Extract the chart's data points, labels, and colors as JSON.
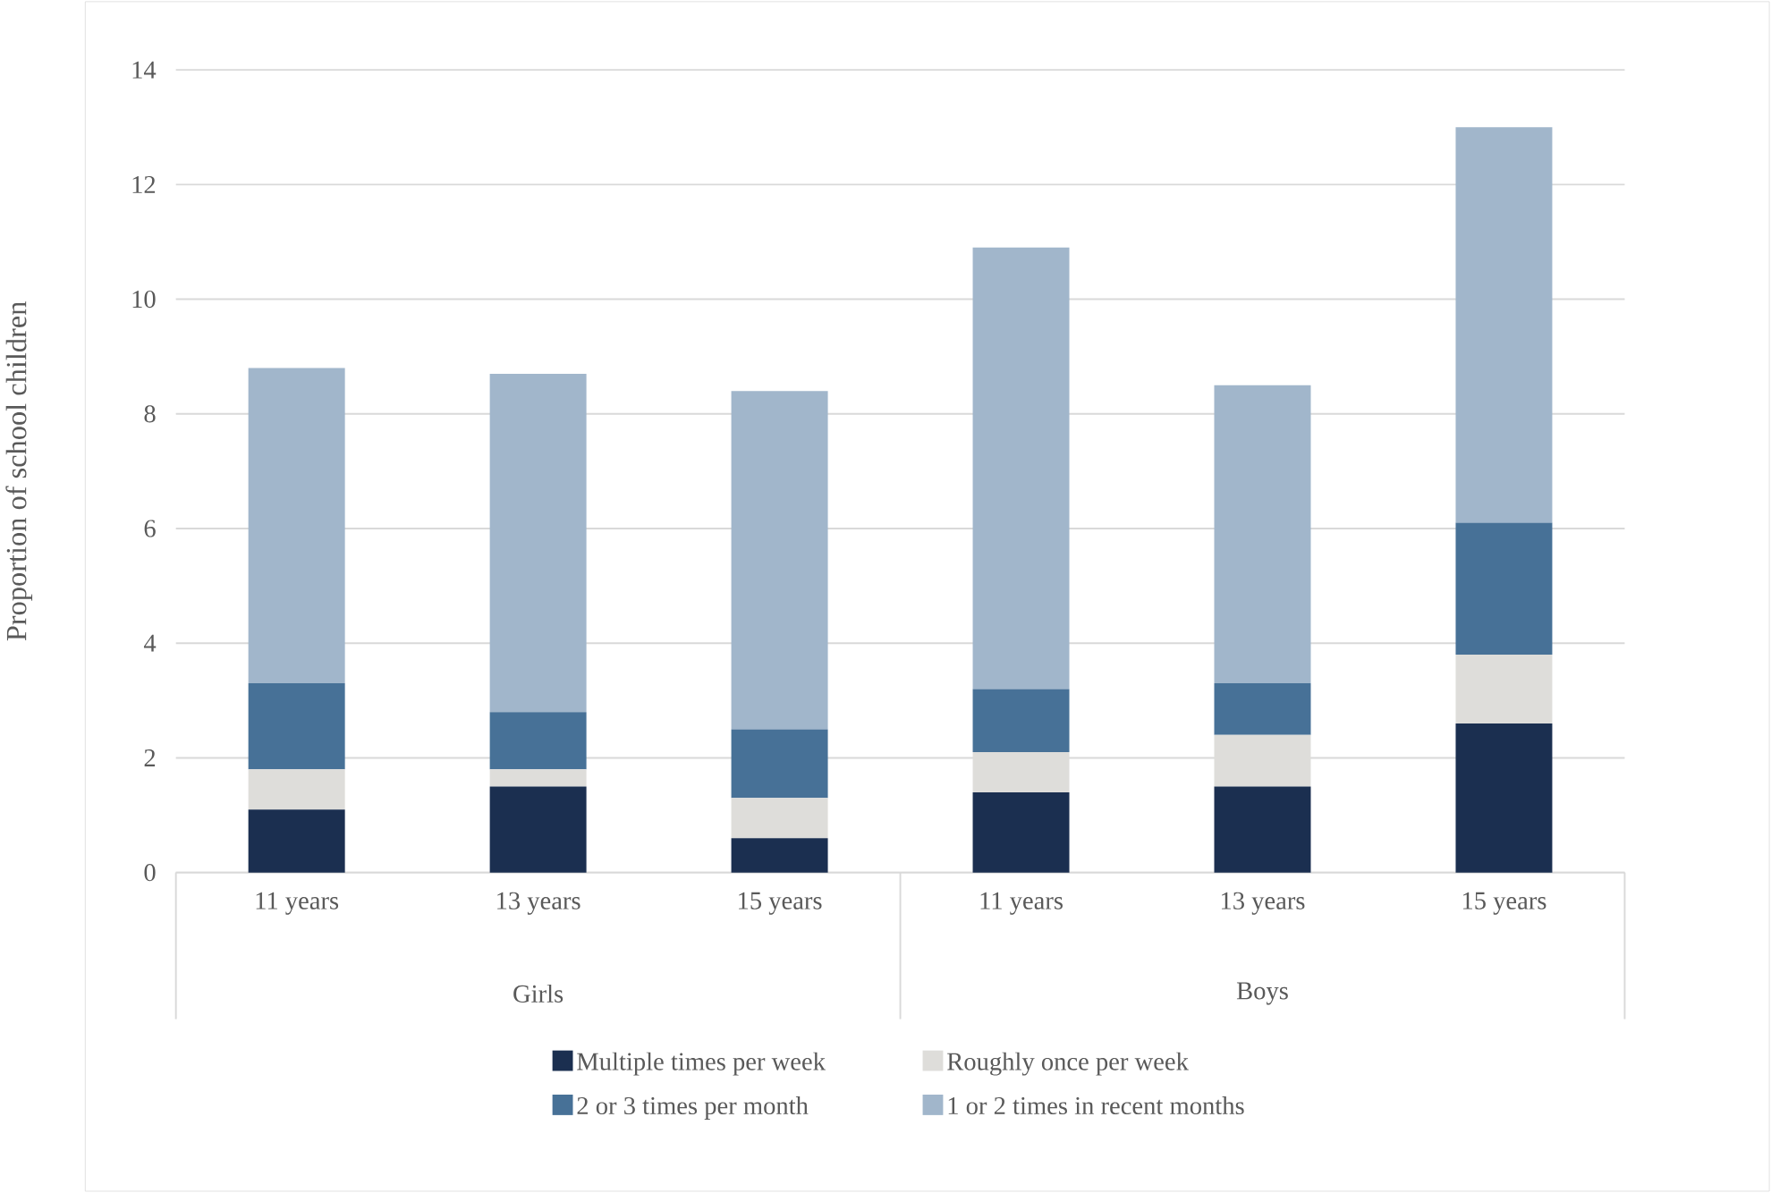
{
  "chart_data": {
    "type": "bar",
    "stacked": true,
    "ylabel": "Proportion of school children",
    "categories": [
      "11 years",
      "13 years",
      "15 years",
      "11 years",
      "13 years",
      "15 years"
    ],
    "annotations": [
      "Girls",
      "Boys"
    ],
    "series": [
      {
        "name": "Multiple times per week",
        "color": "#1b2f50",
        "values": [
          1.1,
          1.5,
          0.6,
          1.4,
          1.5,
          2.6
        ]
      },
      {
        "name": "Roughly once per week",
        "color": "#deddda",
        "values": [
          0.7,
          0.3,
          0.7,
          0.7,
          0.9,
          1.2
        ]
      },
      {
        "name": "2 or 3 times per month",
        "color": "#477197",
        "values": [
          1.5,
          1.0,
          1.2,
          1.1,
          0.9,
          2.3
        ]
      },
      {
        "name": "1 or 2 times in recent months",
        "color": "#a1b6cb",
        "values": [
          5.5,
          5.9,
          5.9,
          7.7,
          5.2,
          6.9
        ]
      }
    ],
    "ylim": [
      0,
      14
    ],
    "yticks": [
      0,
      2,
      4,
      6,
      8,
      10,
      12,
      14
    ],
    "grid": "y",
    "legend": "bottom"
  }
}
